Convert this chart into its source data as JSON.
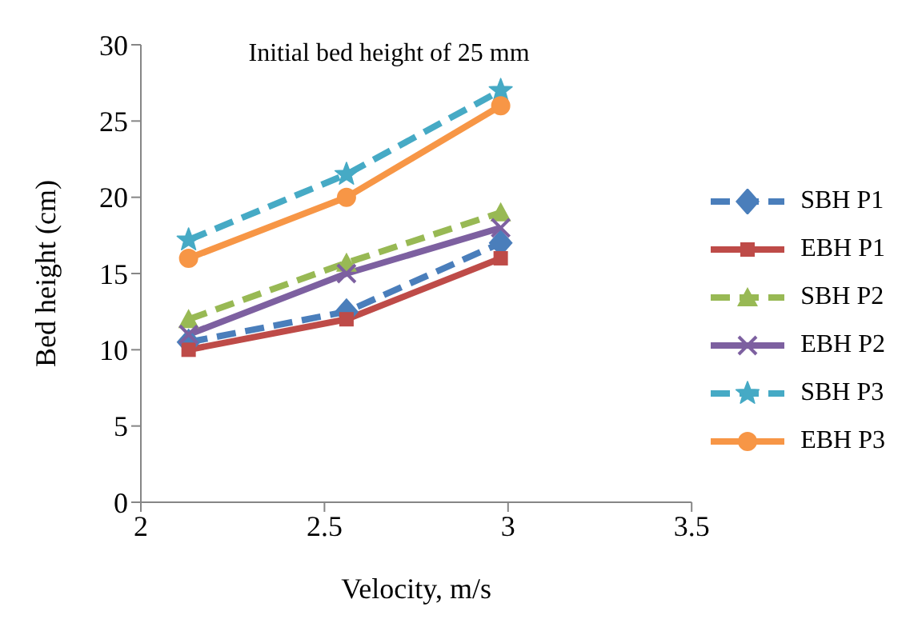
{
  "chart_data": {
    "type": "line",
    "title": "Initial bed height of 25 mm",
    "xlabel": "Velocity, m/s",
    "ylabel": "Bed height (cm)",
    "x": [
      2.13,
      2.56,
      2.98
    ],
    "series": [
      {
        "name": "SBH P1",
        "color": "#4a7ebb",
        "values": [
          10.5,
          12.5,
          17
        ],
        "marker": "diamond",
        "line_style": "dashed"
      },
      {
        "name": "EBH P1",
        "color": "#be4b48",
        "values": [
          10,
          12,
          16
        ],
        "marker": "square",
        "line_style": "solid"
      },
      {
        "name": "SBH P2",
        "color": "#98b954",
        "values": [
          12,
          15.7,
          19
        ],
        "marker": "triangle",
        "line_style": "dashed"
      },
      {
        "name": "EBH P2",
        "color": "#7d60a0",
        "values": [
          11,
          15,
          18
        ],
        "marker": "cross",
        "line_style": "solid"
      },
      {
        "name": "SBH P3",
        "color": "#46aac5",
        "values": [
          17.2,
          21.5,
          27
        ],
        "marker": "star",
        "line_style": "dashed"
      },
      {
        "name": "EBH P3",
        "color": "#f79646",
        "values": [
          16,
          20,
          26
        ],
        "marker": "circle",
        "line_style": "solid"
      }
    ],
    "xlim": [
      2,
      3.5
    ],
    "xticks": [
      2,
      2.5,
      3,
      3.5
    ],
    "ylim": [
      0,
      30
    ],
    "yticks": [
      0,
      5,
      10,
      15,
      20,
      25,
      30
    ],
    "grid": false,
    "legend": "right"
  }
}
